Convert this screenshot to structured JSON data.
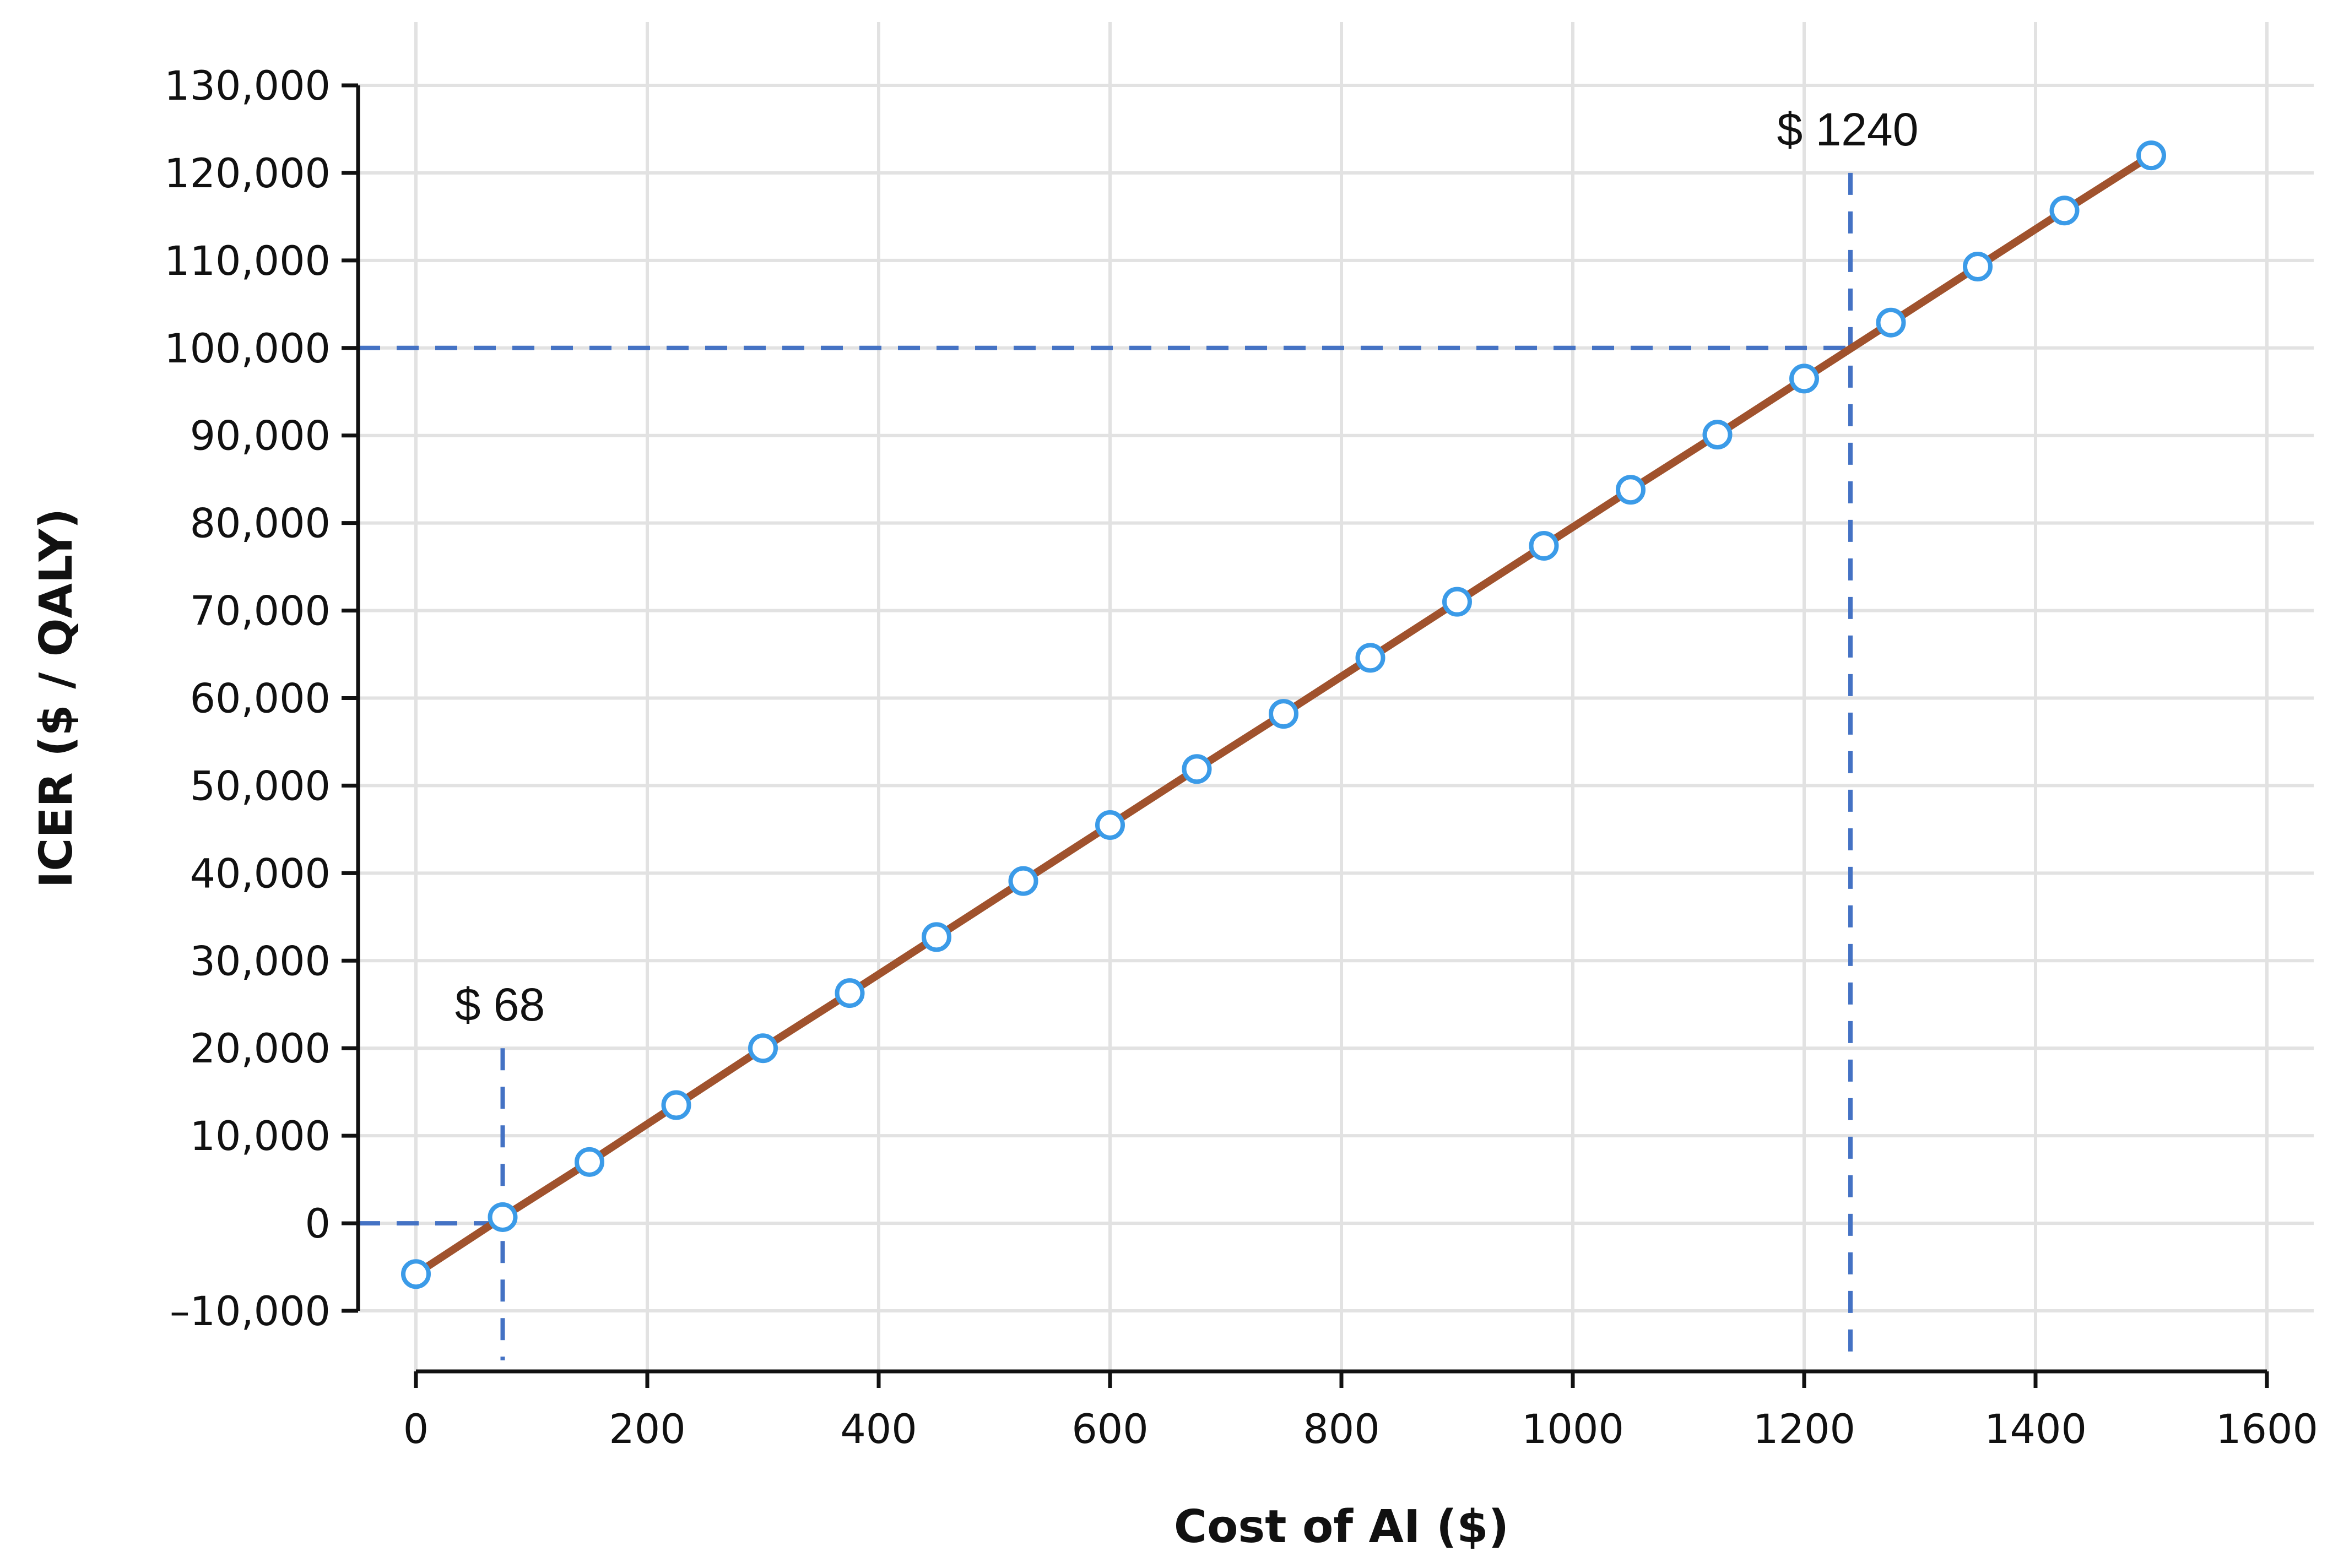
{
  "chart_data": {
    "type": "line",
    "title": "",
    "xlabel": "Cost of AI ($)",
    "ylabel": "ICER ($ / QALY)",
    "xlim": [
      -50,
      1600
    ],
    "ylim": [
      -10000,
      130000
    ],
    "x_ticks": [
      0,
      200,
      400,
      600,
      800,
      1000,
      1200,
      1400,
      1600
    ],
    "x_tick_labels": [
      "0",
      "200",
      "400",
      "600",
      "800",
      "1000",
      "1200",
      "1400",
      "1600"
    ],
    "y_ticks": [
      -10000,
      0,
      10000,
      20000,
      30000,
      40000,
      50000,
      60000,
      70000,
      80000,
      90000,
      100000,
      110000,
      120000,
      130000
    ],
    "y_tick_labels": [
      "–10,000",
      "0",
      "10,000",
      "20,000",
      "30,000",
      "40,000",
      "50,000",
      "60,000",
      "70,000",
      "80,000",
      "90,000",
      "100,000",
      "110,000",
      "120,000",
      "130,000"
    ],
    "grid": true,
    "colors": {
      "line": "#a0522d",
      "marker_stroke": "#3b9be8",
      "marker_fill": "#ffffff",
      "reference": "#4472c4",
      "grid": "#e2e2e2",
      "axis": "#111111"
    },
    "series": [
      {
        "x": [
          0,
          75,
          150,
          225,
          300,
          375,
          450,
          525,
          600,
          675,
          750,
          825,
          900,
          975,
          1050,
          1125,
          1200,
          1275,
          1350,
          1425,
          1500
        ],
        "y": [
          -5800,
          700,
          7000,
          13500,
          20000,
          26300,
          32700,
          39100,
          45500,
          51900,
          58200,
          64600,
          71000,
          77400,
          83800,
          90100,
          96500,
          102900,
          109300,
          115700,
          122000
        ]
      }
    ],
    "annotations": [
      {
        "text": "$ 68",
        "x": 75,
        "y": 0,
        "vertical_to": 20000,
        "horizontal_from": -50
      },
      {
        "text": "$ 1240",
        "x": 1240,
        "y": 100000,
        "vertical_to": 120000,
        "horizontal_from": -50
      }
    ]
  }
}
